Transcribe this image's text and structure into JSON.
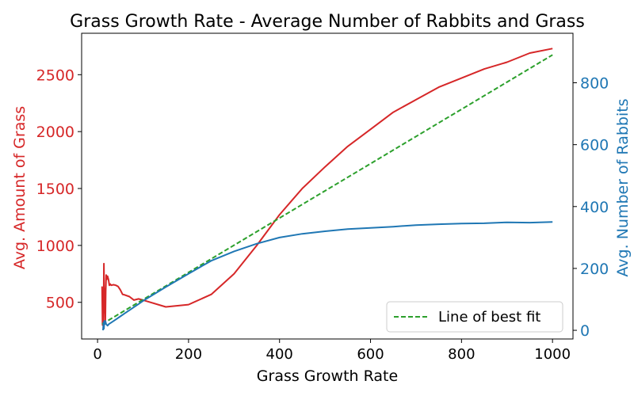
{
  "chart_data": {
    "type": "line",
    "title": "Grass Growth Rate - Average Number of Rabbits and Grass",
    "xlabel": "Grass Growth Rate",
    "xlim": [
      -35,
      1045
    ],
    "xticks": [
      0,
      200,
      400,
      600,
      800,
      1000
    ],
    "grid": false,
    "left_axis": {
      "label": "Avg. Amount of Grass",
      "color": "#d62728",
      "ylim": [
        178,
        2864
      ],
      "ticks": [
        500,
        1000,
        1500,
        2000,
        2500
      ]
    },
    "right_axis": {
      "label": "Avg. Number of Rabbits",
      "color": "#1f77b4",
      "ylim": [
        -28,
        960
      ],
      "ticks": [
        0,
        200,
        400,
        600,
        800
      ]
    },
    "legend": {
      "placement": "lower-right"
    },
    "series": [
      {
        "key": "grass",
        "axis": "left",
        "color": "#d62728",
        "style": "solid",
        "x": [
          10,
          11,
          12,
          13,
          14,
          15,
          16,
          17,
          18,
          19,
          20,
          22,
          24,
          26,
          28,
          30,
          35,
          40,
          45,
          50,
          55,
          60,
          70,
          80,
          90,
          100,
          150,
          200,
          250,
          300,
          350,
          400,
          450,
          500,
          550,
          600,
          650,
          700,
          750,
          800,
          850,
          900,
          950,
          1000
        ],
        "y": [
          640,
          300,
          560,
          320,
          840,
          410,
          620,
          330,
          600,
          740,
          700,
          730,
          700,
          650,
          660,
          650,
          655,
          650,
          640,
          610,
          570,
          565,
          550,
          520,
          530,
          520,
          460,
          480,
          570,
          750,
          1000,
          1270,
          1500,
          1690,
          1870,
          2020,
          2170,
          2280,
          2390,
          2470,
          2550,
          2610,
          2690,
          2730
        ]
      },
      {
        "key": "rabbits",
        "axis": "right",
        "color": "#1f77b4",
        "style": "solid",
        "x": [
          12,
          13,
          14,
          15,
          16,
          17,
          18,
          19,
          20,
          22,
          25,
          30,
          40,
          50,
          60,
          70,
          80,
          90,
          100,
          150,
          200,
          250,
          300,
          350,
          400,
          450,
          500,
          550,
          600,
          650,
          700,
          750,
          800,
          850,
          900,
          950,
          1000
        ],
        "y": [
          0,
          25,
          5,
          30,
          20,
          30,
          25,
          20,
          18,
          15,
          20,
          25,
          35,
          45,
          55,
          65,
          75,
          85,
          95,
          140,
          183,
          225,
          255,
          280,
          300,
          312,
          320,
          327,
          331,
          335,
          340,
          343,
          345,
          346,
          349,
          348,
          350
        ]
      },
      {
        "key": "fit",
        "axis": "right",
        "name": "Line of best fit",
        "color": "#2ca02c",
        "style": "dashed",
        "x": [
          10,
          1000
        ],
        "y": [
          20,
          890
        ]
      }
    ]
  }
}
